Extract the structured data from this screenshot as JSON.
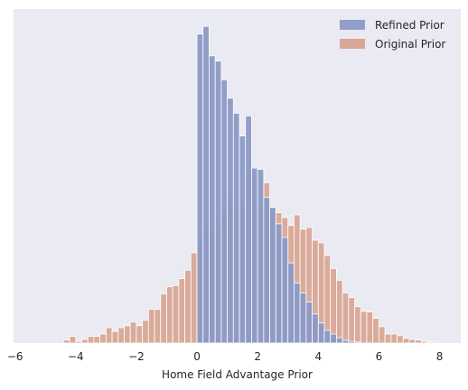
{
  "chart_data": {
    "type": "histogram",
    "title": "",
    "xlabel": "Home Field Advantage Prior",
    "ylabel": "",
    "xlim": [
      -6.05,
      8.7
    ],
    "ylim": [
      0,
      1.0
    ],
    "x_ticks": [
      -6,
      -4,
      -2,
      0,
      2,
      4,
      6,
      8
    ],
    "x_tick_labels": [
      "−6",
      "−4",
      "−2",
      "0",
      "2",
      "4",
      "6",
      "8"
    ],
    "y_ticks_visible": false,
    "grid": false,
    "background": "#eaeaf2",
    "legend_position": "top-right",
    "series": [
      {
        "name": "Refined Prior",
        "color": "#8c9ac7",
        "bin_width": 0.2,
        "bins": [
          {
            "x0": 0.0,
            "h": 0.925
          },
          {
            "x0": 0.2,
            "h": 0.948
          },
          {
            "x0": 0.4,
            "h": 0.86
          },
          {
            "x0": 0.6,
            "h": 0.844
          },
          {
            "x0": 0.8,
            "h": 0.788
          },
          {
            "x0": 1.0,
            "h": 0.733
          },
          {
            "x0": 1.2,
            "h": 0.688
          },
          {
            "x0": 1.4,
            "h": 0.62
          },
          {
            "x0": 1.6,
            "h": 0.68
          },
          {
            "x0": 1.8,
            "h": 0.524
          },
          {
            "x0": 2.0,
            "h": 0.52
          },
          {
            "x0": 2.2,
            "h": 0.436
          },
          {
            "x0": 2.4,
            "h": 0.406
          },
          {
            "x0": 2.6,
            "h": 0.357
          },
          {
            "x0": 2.8,
            "h": 0.316
          },
          {
            "x0": 3.0,
            "h": 0.24
          },
          {
            "x0": 3.2,
            "h": 0.18
          },
          {
            "x0": 3.4,
            "h": 0.15
          },
          {
            "x0": 3.6,
            "h": 0.123
          },
          {
            "x0": 3.8,
            "h": 0.087
          },
          {
            "x0": 4.0,
            "h": 0.06
          },
          {
            "x0": 4.2,
            "h": 0.038
          },
          {
            "x0": 4.4,
            "h": 0.027
          },
          {
            "x0": 4.6,
            "h": 0.016
          },
          {
            "x0": 4.8,
            "h": 0.008
          },
          {
            "x0": 5.0,
            "h": 0.005
          },
          {
            "x0": 5.2,
            "h": 0.003
          }
        ]
      },
      {
        "name": "Original Prior",
        "color": "#d4967d",
        "bin_width": 0.2,
        "bins": [
          {
            "x0": -4.4,
            "h": 0.009
          },
          {
            "x0": -4.2,
            "h": 0.02
          },
          {
            "x0": -4.0,
            "h": 0.005
          },
          {
            "x0": -3.8,
            "h": 0.011
          },
          {
            "x0": -3.6,
            "h": 0.02
          },
          {
            "x0": -3.4,
            "h": 0.02
          },
          {
            "x0": -3.2,
            "h": 0.027
          },
          {
            "x0": -3.0,
            "h": 0.046
          },
          {
            "x0": -2.8,
            "h": 0.035
          },
          {
            "x0": -2.6,
            "h": 0.046
          },
          {
            "x0": -2.4,
            "h": 0.052
          },
          {
            "x0": -2.2,
            "h": 0.063
          },
          {
            "x0": -2.0,
            "h": 0.052
          },
          {
            "x0": -1.8,
            "h": 0.068
          },
          {
            "x0": -1.6,
            "h": 0.101
          },
          {
            "x0": -1.4,
            "h": 0.101
          },
          {
            "x0": -1.2,
            "h": 0.147
          },
          {
            "x0": -1.0,
            "h": 0.169
          },
          {
            "x0": -0.8,
            "h": 0.172
          },
          {
            "x0": -0.6,
            "h": 0.193
          },
          {
            "x0": -0.4,
            "h": 0.218
          },
          {
            "x0": -0.2,
            "h": 0.27
          },
          {
            "x0": 0.0,
            "h": 0.311
          },
          {
            "x0": 0.2,
            "h": 0.354
          },
          {
            "x0": 0.4,
            "h": 0.338
          },
          {
            "x0": 0.6,
            "h": 0.357
          },
          {
            "x0": 0.8,
            "h": 0.393
          },
          {
            "x0": 1.0,
            "h": 0.436
          },
          {
            "x0": 1.2,
            "h": 0.4
          },
          {
            "x0": 1.4,
            "h": 0.412
          },
          {
            "x0": 1.6,
            "h": 0.518
          },
          {
            "x0": 1.8,
            "h": 0.441
          },
          {
            "x0": 2.0,
            "h": 0.409
          },
          {
            "x0": 2.2,
            "h": 0.48
          },
          {
            "x0": 2.4,
            "h": 0.406
          },
          {
            "x0": 2.6,
            "h": 0.39
          },
          {
            "x0": 2.8,
            "h": 0.376
          },
          {
            "x0": 3.0,
            "h": 0.352
          },
          {
            "x0": 3.2,
            "h": 0.384
          },
          {
            "x0": 3.4,
            "h": 0.341
          },
          {
            "x0": 3.6,
            "h": 0.346
          },
          {
            "x0": 3.8,
            "h": 0.308
          },
          {
            "x0": 4.0,
            "h": 0.3
          },
          {
            "x0": 4.2,
            "h": 0.262
          },
          {
            "x0": 4.4,
            "h": 0.223
          },
          {
            "x0": 4.6,
            "h": 0.188
          },
          {
            "x0": 4.8,
            "h": 0.15
          },
          {
            "x0": 5.0,
            "h": 0.136
          },
          {
            "x0": 5.2,
            "h": 0.109
          },
          {
            "x0": 5.4,
            "h": 0.095
          },
          {
            "x0": 5.6,
            "h": 0.093
          },
          {
            "x0": 5.8,
            "h": 0.074
          },
          {
            "x0": 6.0,
            "h": 0.049
          },
          {
            "x0": 6.2,
            "h": 0.027
          },
          {
            "x0": 6.4,
            "h": 0.027
          },
          {
            "x0": 6.6,
            "h": 0.022
          },
          {
            "x0": 6.8,
            "h": 0.014
          },
          {
            "x0": 7.0,
            "h": 0.011
          },
          {
            "x0": 7.2,
            "h": 0.009
          },
          {
            "x0": 7.4,
            "h": 0.005
          },
          {
            "x0": 7.6,
            "h": 0.003
          },
          {
            "x0": 7.8,
            "h": 0.003
          }
        ]
      }
    ]
  }
}
